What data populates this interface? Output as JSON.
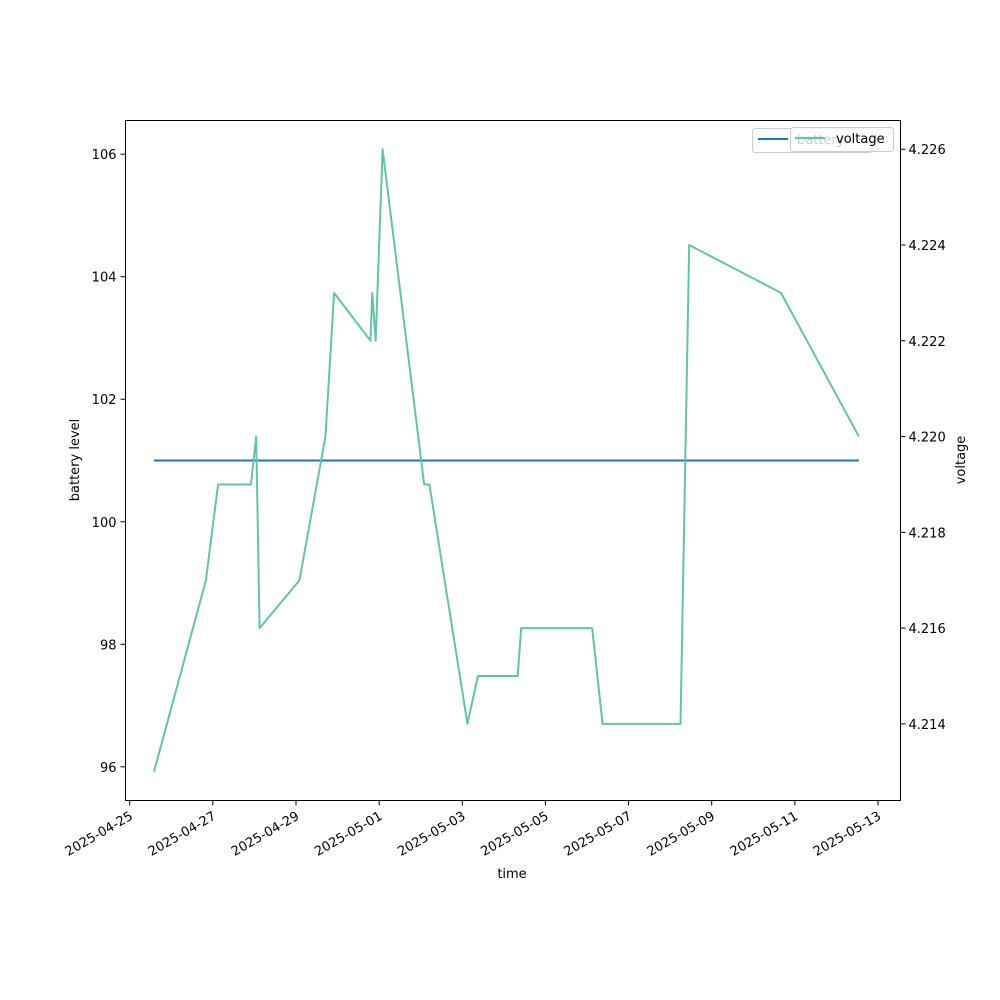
{
  "chart_data": {
    "type": "line",
    "title": "",
    "xlabel": "time",
    "ylabel_left": "battery level",
    "ylabel_right": "voltage",
    "x_range": [
      "2025-04-24T21:34",
      "2025-05-13T13:00"
    ],
    "y_left_lim": [
      95.45,
      106.55
    ],
    "y_right_lim": [
      4.2124,
      4.2266
    ],
    "x_ticks": [
      "2025-04-25",
      "2025-04-27",
      "2025-04-29",
      "2025-05-01",
      "2025-05-03",
      "2025-05-05",
      "2025-05-07",
      "2025-05-09",
      "2025-05-11",
      "2025-05-13"
    ],
    "y_left_ticks": [
      96,
      98,
      100,
      102,
      104,
      106
    ],
    "y_right_ticks": [
      4.214,
      4.216,
      4.218,
      4.22,
      4.222,
      4.224,
      4.226
    ],
    "y_right_tick_labels": [
      "4.214",
      "4.216",
      "4.218",
      "4.220",
      "4.222",
      "4.224",
      "4.226"
    ],
    "grid": false,
    "series": [
      {
        "name": "battery",
        "axis": "left",
        "color": "#1f77b4",
        "points": [
          [
            "2025-04-25T14:00",
            101
          ],
          [
            "2025-05-12T13:00",
            101
          ]
        ]
      },
      {
        "name": "voltage",
        "axis": "right",
        "color": "#66c2a5",
        "points": [
          [
            "2025-04-25T14:00",
            4.213
          ],
          [
            "2025-04-26T20:00",
            4.217
          ],
          [
            "2025-04-27T03:00",
            4.219
          ],
          [
            "2025-04-27T22:00",
            4.219
          ],
          [
            "2025-04-28T01:00",
            4.22
          ],
          [
            "2025-04-28T03:00",
            4.216
          ],
          [
            "2025-04-29T02:00",
            4.217
          ],
          [
            "2025-04-29T17:00",
            4.22
          ],
          [
            "2025-04-29T22:00",
            4.223
          ],
          [
            "2025-04-30T19:00",
            4.222
          ],
          [
            "2025-04-30T20:00",
            4.223
          ],
          [
            "2025-04-30T22:00",
            4.222
          ],
          [
            "2025-05-01T02:00",
            4.226
          ],
          [
            "2025-05-02T02:00",
            4.219
          ],
          [
            "2025-05-02T05:00",
            4.219
          ],
          [
            "2025-05-03T03:00",
            4.214
          ],
          [
            "2025-05-03T09:00",
            4.215
          ],
          [
            "2025-05-04T08:00",
            4.215
          ],
          [
            "2025-05-04T10:00",
            4.216
          ],
          [
            "2025-05-06T03:00",
            4.216
          ],
          [
            "2025-05-06T09:00",
            4.214
          ],
          [
            "2025-05-08T06:00",
            4.214
          ],
          [
            "2025-05-08T11:00",
            4.224
          ],
          [
            "2025-05-10T16:00",
            4.223
          ],
          [
            "2025-05-12T13:00",
            4.22
          ]
        ]
      }
    ],
    "legend": {
      "placement": "top-right",
      "entries": [
        {
          "label": "battery",
          "color": "#1f77b4"
        },
        {
          "label": "voltage",
          "color": "#66c2a5"
        }
      ]
    }
  }
}
